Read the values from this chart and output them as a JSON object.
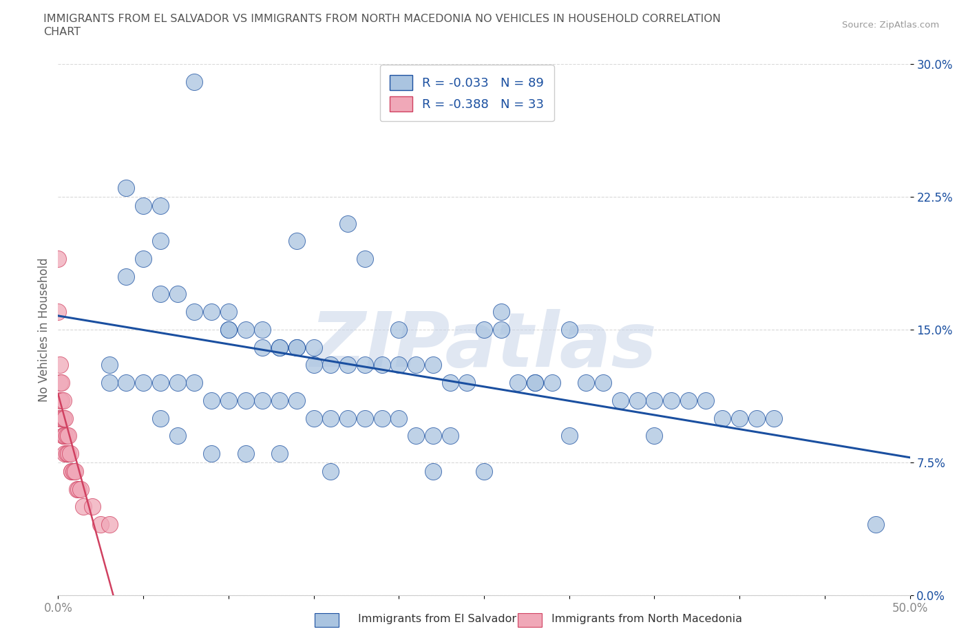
{
  "title_line1": "IMMIGRANTS FROM EL SALVADOR VS IMMIGRANTS FROM NORTH MACEDONIA NO VEHICLES IN HOUSEHOLD CORRELATION",
  "title_line2": "CHART",
  "source_text": "Source: ZipAtlas.com",
  "ylabel": "No Vehicles in Household",
  "xlim": [
    0.0,
    0.5
  ],
  "ylim": [
    0.0,
    0.3
  ],
  "xticks": [
    0.0,
    0.05,
    0.1,
    0.15,
    0.2,
    0.25,
    0.3,
    0.35,
    0.4,
    0.45,
    0.5
  ],
  "xticklabels_show": {
    "0.0": "0.0%",
    "0.5": "50.0%"
  },
  "yticks": [
    0.0,
    0.075,
    0.15,
    0.225,
    0.3
  ],
  "yticklabels": [
    "0.0%",
    "7.5%",
    "15.0%",
    "22.5%",
    "30.0%"
  ],
  "legend_label1": "R = -0.033   N = 89",
  "legend_label2": "R = -0.388   N = 33",
  "color_el_salvador": "#aac4e0",
  "color_north_macedonia": "#f0a8b8",
  "trendline_color_1": "#1a4fa0",
  "trendline_color_2": "#d04060",
  "background_color": "#ffffff",
  "grid_color": "#d8d8d8",
  "title_color": "#555555",
  "axis_label_color": "#666666",
  "tick_color": "#888888",
  "ytick_color": "#1a4fa0",
  "watermark_color": "#c8d4e8",
  "watermark_text": "ZIPatlas",
  "legend_text_color": "#1a4fa0",
  "el_salvador_x": [
    0.08,
    0.04,
    0.05,
    0.06,
    0.06,
    0.05,
    0.04,
    0.06,
    0.07,
    0.08,
    0.09,
    0.1,
    0.1,
    0.1,
    0.11,
    0.12,
    0.12,
    0.13,
    0.13,
    0.14,
    0.14,
    0.15,
    0.15,
    0.16,
    0.17,
    0.18,
    0.19,
    0.2,
    0.21,
    0.22,
    0.23,
    0.24,
    0.25,
    0.26,
    0.27,
    0.28,
    0.29,
    0.3,
    0.31,
    0.32,
    0.33,
    0.34,
    0.35,
    0.36,
    0.37,
    0.38,
    0.39,
    0.4,
    0.41,
    0.42,
    0.03,
    0.03,
    0.04,
    0.05,
    0.06,
    0.07,
    0.08,
    0.09,
    0.1,
    0.11,
    0.12,
    0.13,
    0.14,
    0.15,
    0.16,
    0.17,
    0.18,
    0.19,
    0.2,
    0.21,
    0.22,
    0.23,
    0.14,
    0.17,
    0.18,
    0.26,
    0.28,
    0.3,
    0.35,
    0.2,
    0.48,
    0.06,
    0.07,
    0.09,
    0.11,
    0.13,
    0.16,
    0.22,
    0.25
  ],
  "el_salvador_y": [
    0.29,
    0.23,
    0.22,
    0.22,
    0.2,
    0.19,
    0.18,
    0.17,
    0.17,
    0.16,
    0.16,
    0.16,
    0.15,
    0.15,
    0.15,
    0.15,
    0.14,
    0.14,
    0.14,
    0.14,
    0.14,
    0.14,
    0.13,
    0.13,
    0.13,
    0.13,
    0.13,
    0.13,
    0.13,
    0.13,
    0.12,
    0.12,
    0.15,
    0.15,
    0.12,
    0.12,
    0.12,
    0.15,
    0.12,
    0.12,
    0.11,
    0.11,
    0.11,
    0.11,
    0.11,
    0.11,
    0.1,
    0.1,
    0.1,
    0.1,
    0.13,
    0.12,
    0.12,
    0.12,
    0.12,
    0.12,
    0.12,
    0.11,
    0.11,
    0.11,
    0.11,
    0.11,
    0.11,
    0.1,
    0.1,
    0.1,
    0.1,
    0.1,
    0.1,
    0.09,
    0.09,
    0.09,
    0.2,
    0.21,
    0.19,
    0.16,
    0.12,
    0.09,
    0.09,
    0.15,
    0.04,
    0.1,
    0.09,
    0.08,
    0.08,
    0.08,
    0.07,
    0.07,
    0.07
  ],
  "north_macedonia_x": [
    0.0,
    0.0,
    0.001,
    0.001,
    0.001,
    0.001,
    0.001,
    0.002,
    0.002,
    0.002,
    0.003,
    0.003,
    0.003,
    0.003,
    0.004,
    0.004,
    0.004,
    0.005,
    0.005,
    0.006,
    0.006,
    0.007,
    0.008,
    0.008,
    0.009,
    0.01,
    0.011,
    0.012,
    0.013,
    0.015,
    0.02,
    0.025,
    0.03
  ],
  "north_macedonia_y": [
    0.19,
    0.16,
    0.13,
    0.12,
    0.11,
    0.1,
    0.1,
    0.12,
    0.11,
    0.1,
    0.11,
    0.1,
    0.09,
    0.09,
    0.1,
    0.09,
    0.08,
    0.09,
    0.08,
    0.09,
    0.08,
    0.08,
    0.07,
    0.07,
    0.07,
    0.07,
    0.06,
    0.06,
    0.06,
    0.05,
    0.05,
    0.04,
    0.04
  ]
}
